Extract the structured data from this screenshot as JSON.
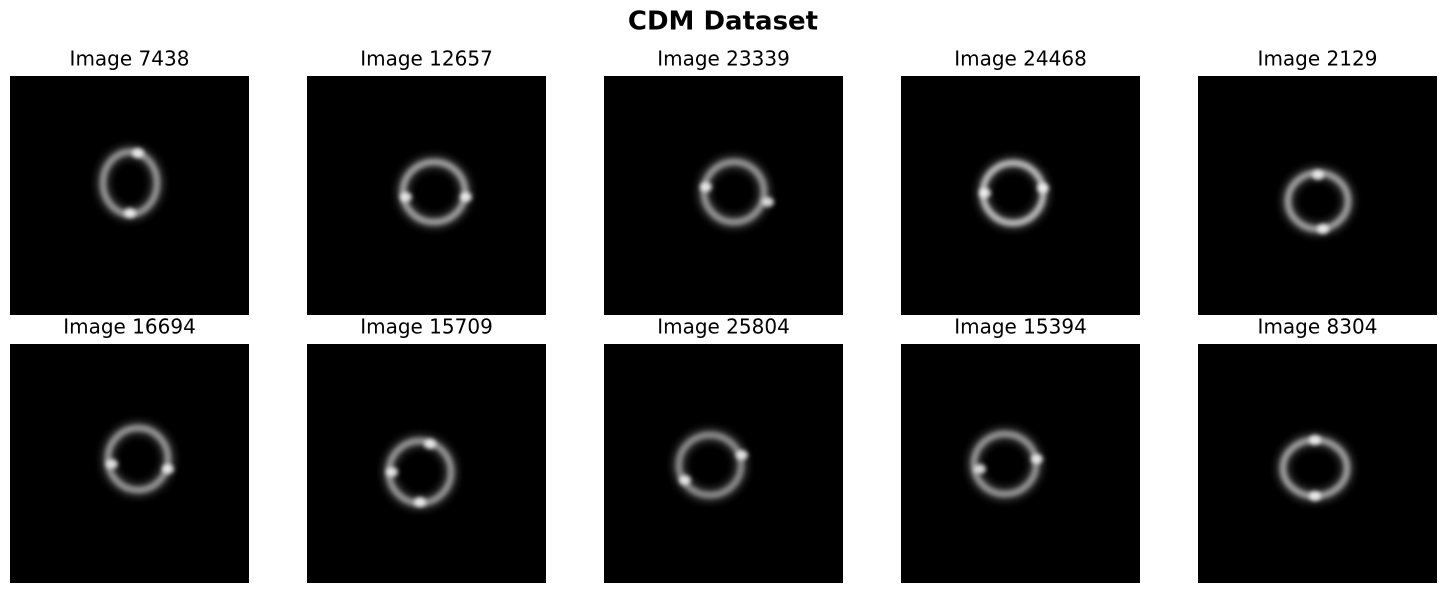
{
  "title": "CDM Dataset",
  "images": [
    {
      "title": "Image 7438"
    },
    {
      "title": "Image 12657"
    },
    {
      "title": "Image 23339"
    },
    {
      "title": "Image 24468"
    },
    {
      "title": "Image 2129"
    },
    {
      "title": "Image 16694"
    },
    {
      "title": "Image 15709"
    },
    {
      "title": "Image 25804"
    },
    {
      "title": "Image 15394"
    },
    {
      "title": "Image 8304"
    }
  ]
}
